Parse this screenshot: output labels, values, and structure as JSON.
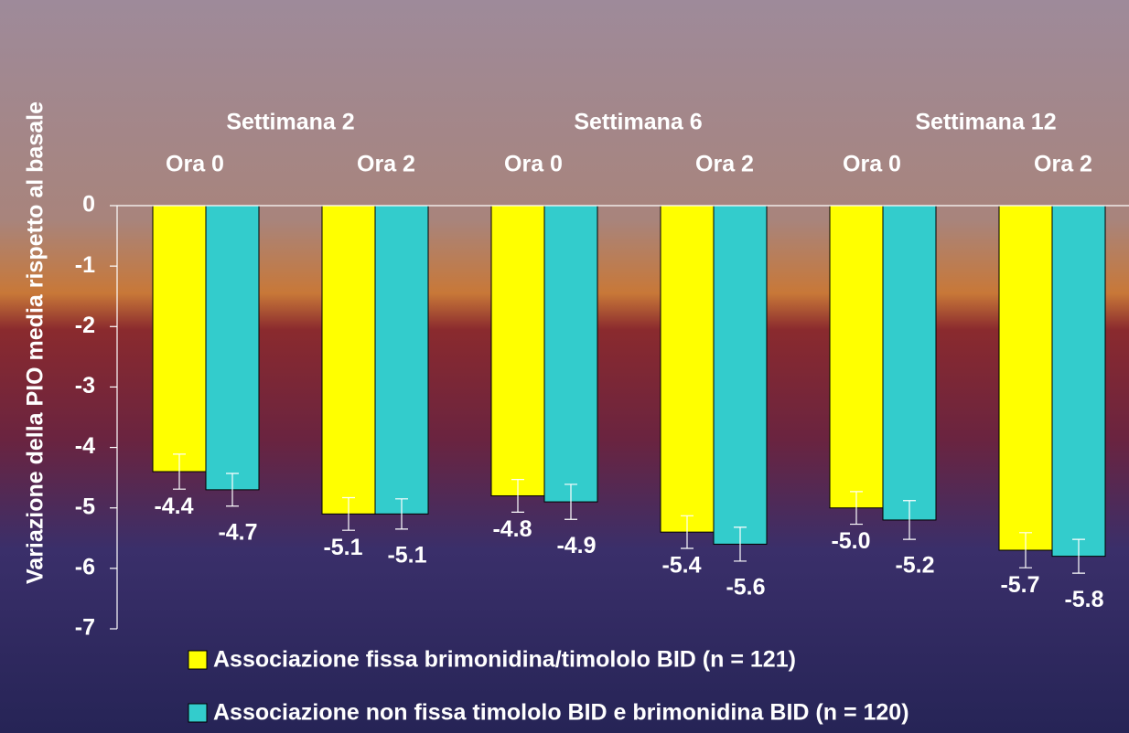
{
  "chart_data": {
    "type": "bar",
    "y_axis_label": "Variazione della PIO media rispetto al basale",
    "group_labels": [
      "Settimana 2",
      "Settimana 6",
      "Settimana 12"
    ],
    "categories": [
      "Ora 0",
      "Ora 2",
      "Ora 0",
      "Ora 2",
      "Ora 0",
      "Ora 2"
    ],
    "series": [
      {
        "name": "Associazione fissa brimonidina/timololo BID (n = 121)",
        "color": "#ffff00",
        "values": [
          -4.4,
          -5.1,
          -4.8,
          -5.4,
          -5.0,
          -5.7
        ],
        "value_labels": [
          "-4.4",
          "-5.1",
          "-4.8",
          "-5.4",
          "-5.0",
          "-5.7"
        ],
        "errors": [
          0.29,
          0.27,
          0.27,
          0.27,
          0.27,
          0.29
        ]
      },
      {
        "name": "Associazione non fissa timololo BID e brimonidina BID (n = 120)",
        "color": "#33cccc",
        "values": [
          -4.7,
          -5.1,
          -4.9,
          -5.6,
          -5.2,
          -5.8
        ],
        "value_labels": [
          "-4.7",
          "-5.1",
          "-4.9",
          "-5.6",
          "-5.2",
          "-5.8"
        ],
        "errors": [
          0.27,
          0.25,
          0.29,
          0.28,
          0.32,
          0.28
        ]
      }
    ],
    "ylim": [
      -7,
      0
    ],
    "yticks": [
      0,
      -1,
      -2,
      -3,
      -4,
      -5,
      -6,
      -7
    ]
  }
}
